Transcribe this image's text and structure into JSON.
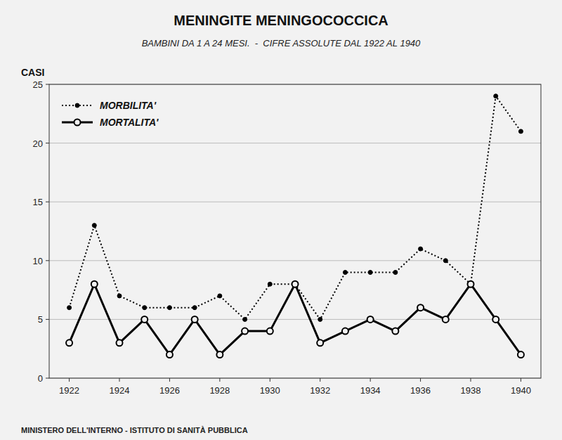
{
  "chart_data": {
    "type": "line",
    "title": "MENINGITE MENINGOCOCCICA",
    "subtitle": "BAMBINI DA 1 A 24 MESI.  -  CIFRE ASSOLUTE DAL 1922 AL 1940",
    "ylabel": "CASI",
    "footer": "MINISTERO DELL'INTERNO - ISTITUTO DI SANITÀ PUBBLICA",
    "x": [
      1922,
      1923,
      1924,
      1925,
      1926,
      1927,
      1928,
      1929,
      1930,
      1931,
      1932,
      1933,
      1934,
      1935,
      1936,
      1937,
      1938,
      1939,
      1940
    ],
    "series": [
      {
        "name": "MORBILITA'",
        "color": "#000000",
        "marker": "circle",
        "line_style": "dotted",
        "values": [
          6,
          13,
          7,
          6,
          6,
          6,
          7,
          5,
          8,
          8,
          5,
          9,
          9,
          9,
          11,
          10,
          8,
          24,
          21
        ]
      },
      {
        "name": "MORTALITA'",
        "color": "#000000",
        "marker": "open-circle",
        "line_style": "solid",
        "values": [
          3,
          8,
          3,
          5,
          2,
          5,
          2,
          4,
          4,
          8,
          3,
          4,
          5,
          4,
          6,
          5,
          8,
          5,
          2
        ]
      }
    ],
    "xlim": [
      1921.2,
      1940.8
    ],
    "xticks": [
      1922,
      1924,
      1926,
      1928,
      1930,
      1932,
      1934,
      1936,
      1938,
      1940
    ],
    "ylim": [
      0,
      25
    ],
    "yticks": [
      0,
      5,
      10,
      15,
      20,
      25
    ],
    "grid": true,
    "legend": "upper left"
  }
}
